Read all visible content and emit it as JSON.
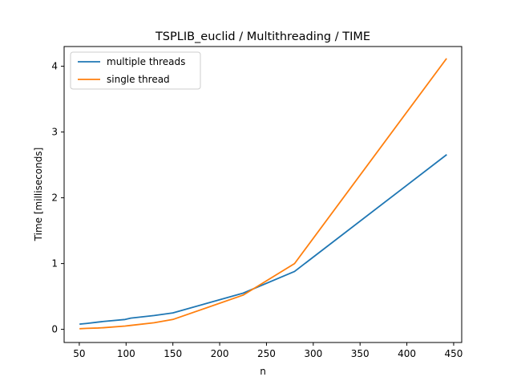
{
  "chart_data": {
    "type": "line",
    "title": "TSPLIB_euclid / Multithreading / TIME",
    "xlabel": "n",
    "ylabel": "Time [milliseconds]",
    "xlim": [
      33.8,
      458.6
    ],
    "ylim": [
      -0.2,
      4.3
    ],
    "xticks": [
      50,
      100,
      150,
      200,
      250,
      300,
      350,
      400,
      450
    ],
    "yticks": [
      0,
      1,
      2,
      3,
      4
    ],
    "grid": false,
    "legend_position": "top-left",
    "series": [
      {
        "name": "multiple threads",
        "color": "#1f77b4",
        "x": [
          51,
          58,
          70,
          76,
          99,
          105,
          130,
          150,
          225,
          280,
          442
        ],
        "y": [
          0.08,
          0.09,
          0.11,
          0.12,
          0.15,
          0.17,
          0.21,
          0.25,
          0.55,
          0.88,
          2.65
        ]
      },
      {
        "name": "single thread",
        "color": "#ff7f0e",
        "x": [
          51,
          58,
          70,
          76,
          99,
          105,
          130,
          150,
          225,
          280,
          442
        ],
        "y": [
          0.01,
          0.015,
          0.02,
          0.025,
          0.05,
          0.06,
          0.1,
          0.15,
          0.52,
          1.0,
          4.11
        ]
      }
    ]
  }
}
